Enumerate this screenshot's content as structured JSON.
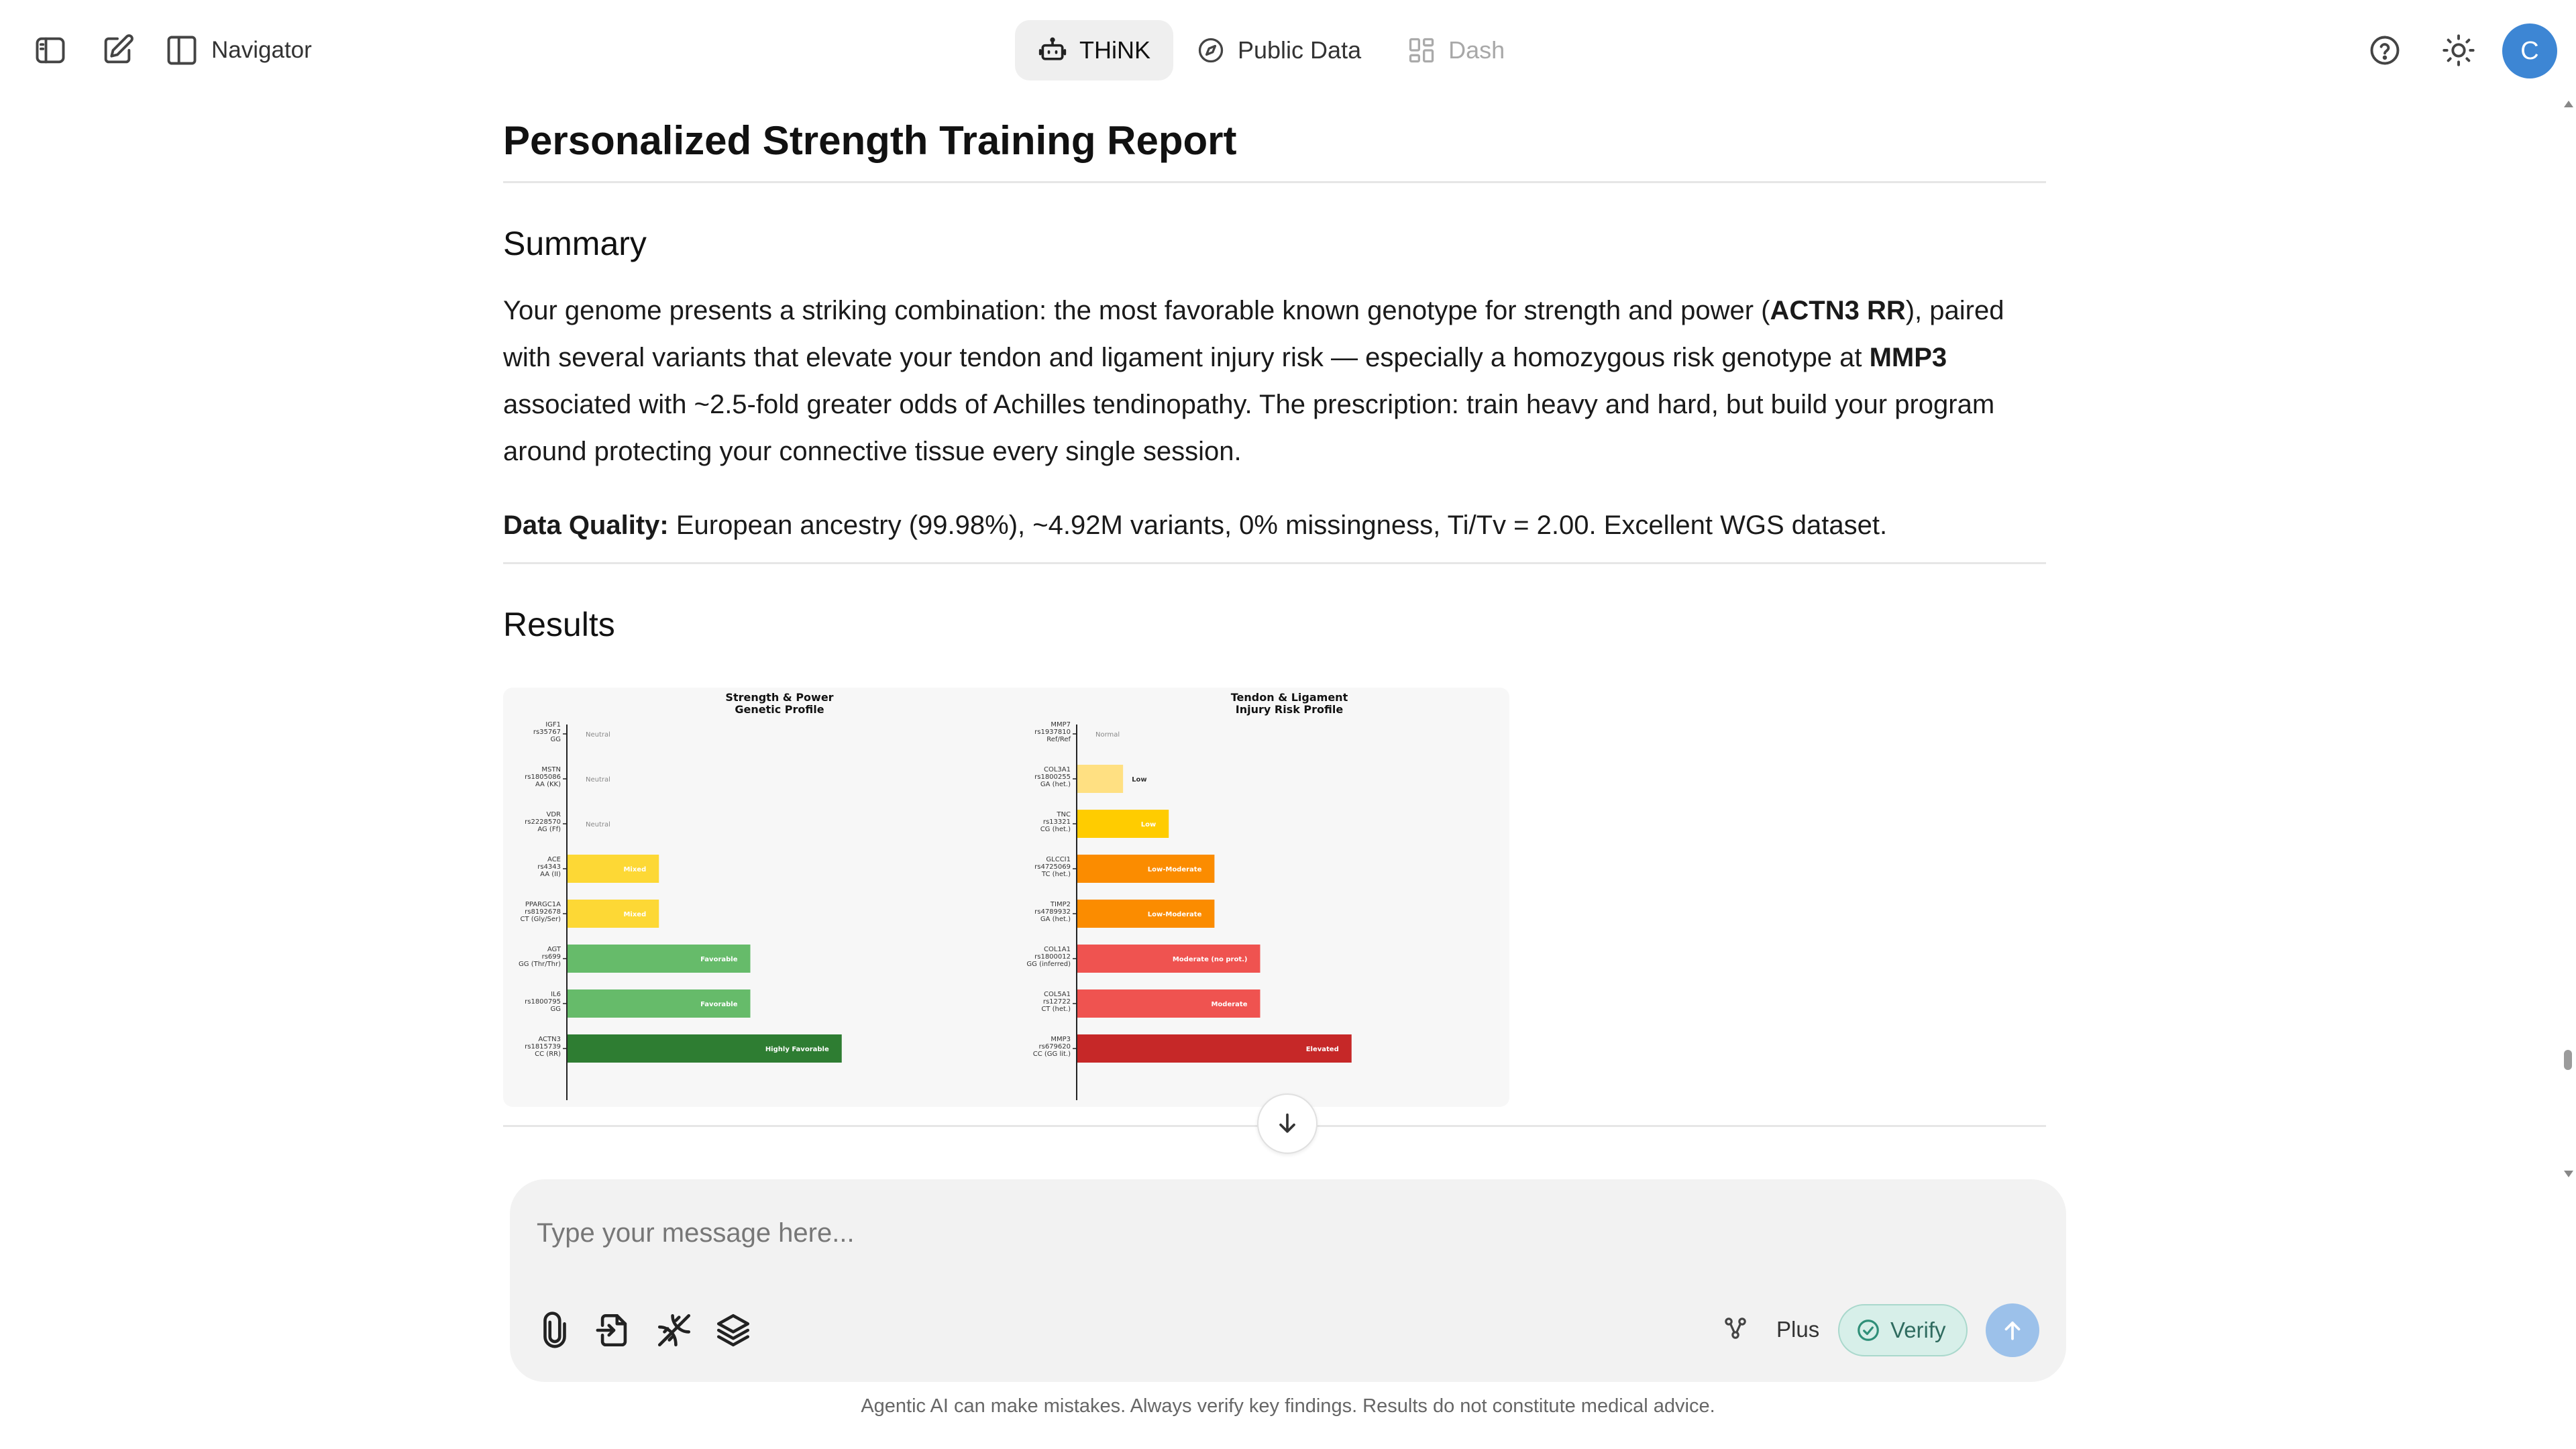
{
  "topbar": {
    "navigator_label": "Navigator",
    "tabs": [
      {
        "label": "THiNK",
        "icon": "robot-icon",
        "state": "active"
      },
      {
        "label": "Public Data",
        "icon": "compass-icon",
        "state": "normal"
      },
      {
        "label": "Dash",
        "icon": "dashboard-icon",
        "state": "disabled"
      }
    ],
    "avatar_initial": "C"
  },
  "report": {
    "title": "Personalized Strength Training Report",
    "summary_heading": "Summary",
    "summary_parts": {
      "p1": "Your genome presents a striking combination: the most favorable known genotype for strength and power (",
      "b1": "ACTN3 RR",
      "p2": "), paired with several variants that elevate your tendon and ligament injury risk — especially a homozygous risk genotype at ",
      "b2": "MMP3",
      "p3": " associated with ~2.5-fold greater odds of Achilles tendinopathy. The prescription: train heavy and hard, but build your program around protecting your connective tissue every single session."
    },
    "data_quality_label": "Data Quality:",
    "data_quality_text": " European ancestry (99.98%), ~4.92M variants, 0% missingness, Ti/Tv = 2.00. Excellent WGS dataset.",
    "results_heading": "Results"
  },
  "chart_data": [
    {
      "type": "bar",
      "orientation": "horizontal",
      "title": "Strength & Power\nGenetic Profile",
      "categories": [
        [
          "IGF1",
          "rs35767",
          "GG"
        ],
        [
          "MSTN",
          "rs1805086",
          "AA (KK)"
        ],
        [
          "VDR",
          "rs2228570",
          "AG (Ff)"
        ],
        [
          "ACE",
          "rs4343",
          "AA (II)"
        ],
        [
          "PPARGC1A",
          "rs8192678",
          "CT (Gly/Ser)"
        ],
        [
          "AGT",
          "rs699",
          "GG (Thr/Thr)"
        ],
        [
          "IL6",
          "rs1800795",
          "GG"
        ],
        [
          "ACTN3",
          "rs1815739",
          "CC (RR)"
        ]
      ],
      "values": [
        0,
        0,
        0,
        1,
        1,
        2,
        2,
        3
      ],
      "labels": [
        "Neutral",
        "Neutral",
        "Neutral",
        "Mixed",
        "Mixed",
        "Favorable",
        "Favorable",
        "Highly Favorable"
      ],
      "colors": [
        "#bdbdbd",
        "#bdbdbd",
        "#bdbdbd",
        "#fdd835",
        "#fdd835",
        "#66bb6a",
        "#66bb6a",
        "#2e7d32"
      ],
      "xlim": [
        0,
        4
      ]
    },
    {
      "type": "bar",
      "orientation": "horizontal",
      "title": "Tendon & Ligament\nInjury Risk Profile",
      "categories": [
        [
          "MMP7",
          "rs1937810",
          "Ref/Ref"
        ],
        [
          "COL3A1",
          "rs1800255",
          "GA (het.)"
        ],
        [
          "TNC",
          "rs13321",
          "CG (het.)"
        ],
        [
          "GLCCI1",
          "rs4725069",
          "TC (het.)"
        ],
        [
          "TIMP2",
          "rs4789932",
          "GA (het.)"
        ],
        [
          "COL1A1",
          "rs1800012",
          "GG (inferred)"
        ],
        [
          "COL5A1",
          "rs12722",
          "CT (het.)"
        ],
        [
          "MMP3",
          "rs679620",
          "CC (GG lit.)"
        ]
      ],
      "values": [
        0,
        1,
        2,
        3,
        3,
        4,
        4,
        6
      ],
      "labels": [
        "Normal",
        "Low",
        "Low",
        "Low-Moderate",
        "Low-Moderate",
        "Moderate (no prot.)",
        "Moderate",
        "Elevated"
      ],
      "colors": [
        "#bdbdbd",
        "#ffe082",
        "#ffcc00",
        "#fb8c00",
        "#fb8c00",
        "#ef5350",
        "#ef5350",
        "#c62828"
      ],
      "xlim": [
        0,
        8
      ]
    }
  ],
  "composer": {
    "placeholder": "Type your message here...",
    "plus_label": "Plus",
    "verify_label": "Verify"
  },
  "disclaimer": "Agentic AI can make mistakes. Always verify key findings. Results do not constitute medical advice."
}
